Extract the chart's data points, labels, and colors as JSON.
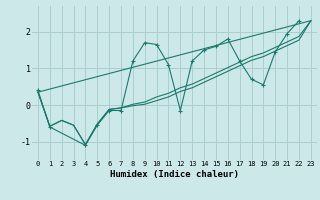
{
  "background_color": "#cce8e8",
  "grid_color": "#aacfcf",
  "line_color": "#1a7a6e",
  "xlabel": "Humidex (Indice chaleur)",
  "xlim": [
    -0.5,
    23.5
  ],
  "ylim": [
    -1.5,
    2.7
  ],
  "yticks": [
    -1,
    0,
    1,
    2
  ],
  "xticks": [
    0,
    1,
    2,
    3,
    4,
    5,
    6,
    7,
    8,
    9,
    10,
    11,
    12,
    13,
    14,
    15,
    16,
    17,
    18,
    19,
    20,
    21,
    22,
    23
  ],
  "series1_x": [
    0,
    1,
    4,
    5,
    6,
    7,
    8,
    9,
    10,
    11,
    12,
    13,
    14,
    15,
    16,
    17,
    18,
    19,
    20,
    21,
    22
  ],
  "series1_y": [
    0.4,
    -0.6,
    -1.1,
    -0.55,
    -0.15,
    -0.15,
    1.2,
    1.7,
    1.65,
    1.1,
    -0.15,
    1.2,
    1.5,
    1.6,
    1.8,
    1.2,
    0.7,
    0.55,
    1.45,
    1.95,
    2.3
  ],
  "series2_x": [
    0,
    1,
    2,
    3,
    4,
    5,
    6,
    7,
    8,
    9,
    10,
    11,
    12,
    13,
    14,
    15,
    16,
    17,
    18,
    19,
    20,
    21,
    22,
    23
  ],
  "series2_y": [
    0.35,
    -0.58,
    -0.42,
    -0.55,
    -1.08,
    -0.52,
    -0.12,
    -0.08,
    0.02,
    0.08,
    0.22,
    0.32,
    0.47,
    0.57,
    0.72,
    0.87,
    1.02,
    1.17,
    1.32,
    1.42,
    1.57,
    1.72,
    1.87,
    2.3
  ],
  "series3_x": [
    0,
    1,
    2,
    3,
    4,
    5,
    6,
    7,
    8,
    9,
    10,
    11,
    12,
    13,
    14,
    15,
    16,
    17,
    18,
    19,
    20,
    21,
    22,
    23
  ],
  "series3_y": [
    0.35,
    -0.58,
    -0.42,
    -0.55,
    -1.08,
    -0.52,
    -0.12,
    -0.08,
    -0.02,
    0.02,
    0.12,
    0.22,
    0.37,
    0.47,
    0.62,
    0.77,
    0.92,
    1.07,
    1.22,
    1.32,
    1.47,
    1.62,
    1.77,
    2.3
  ],
  "series4_x": [
    0,
    23
  ],
  "series4_y": [
    0.35,
    2.3
  ],
  "figsize": [
    3.2,
    2.0
  ],
  "dpi": 100
}
